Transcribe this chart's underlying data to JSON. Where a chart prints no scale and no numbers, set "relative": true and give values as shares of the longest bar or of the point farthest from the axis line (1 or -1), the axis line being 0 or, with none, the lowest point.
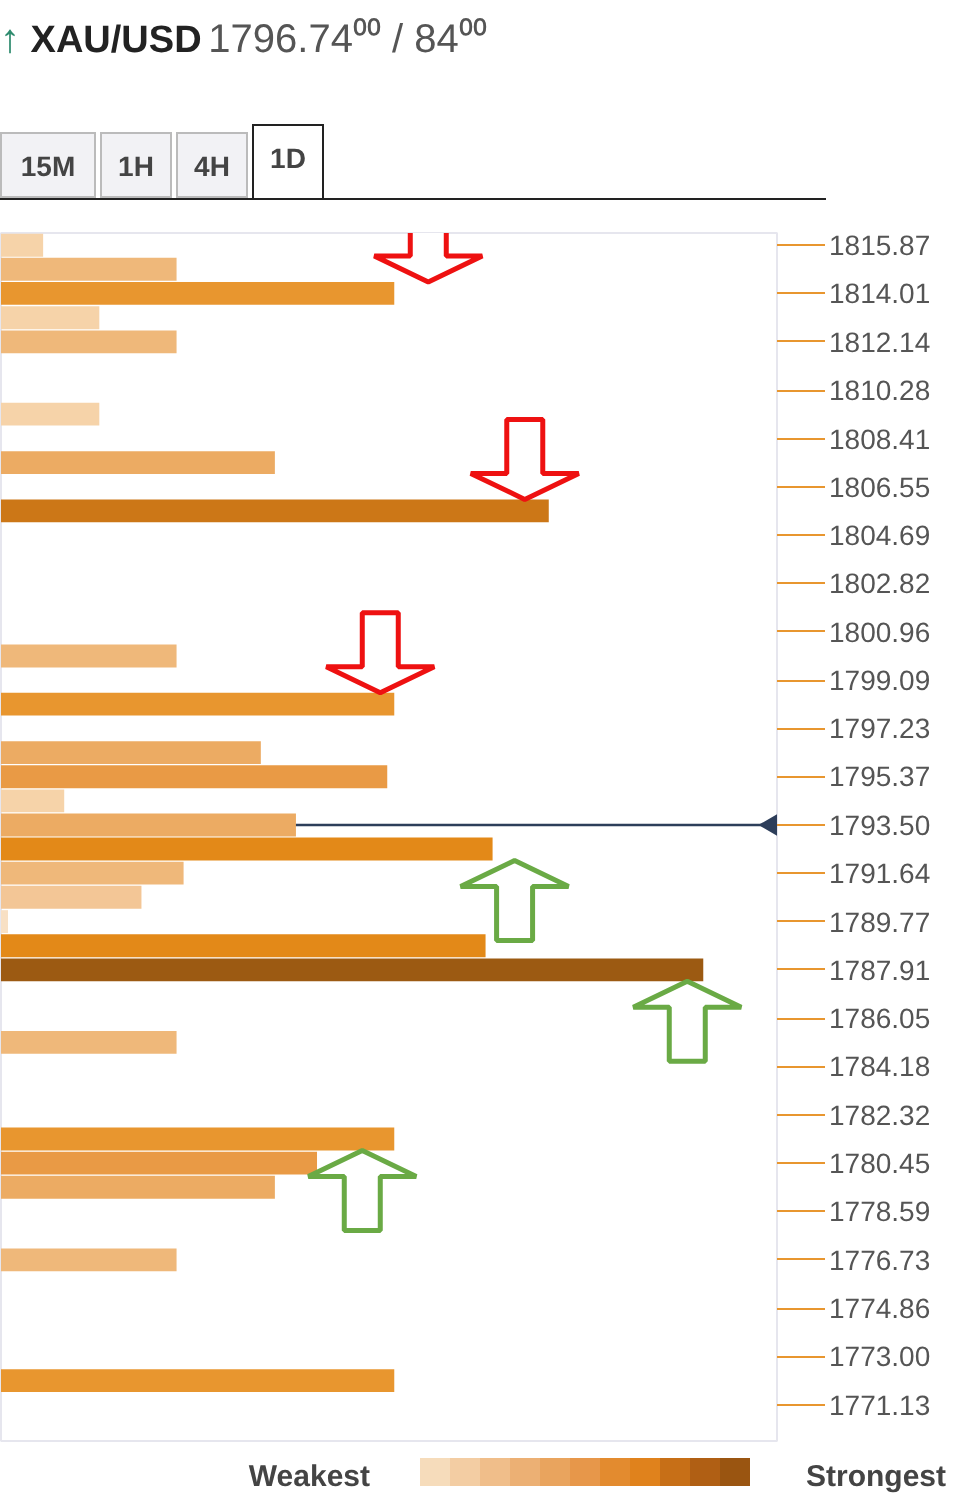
{
  "chart_data": {
    "type": "bar",
    "orientation": "horizontal",
    "relative": true,
    "title": "↑ XAU/USD",
    "subtitle": "1796.74⁰⁰ / 84⁰⁰",
    "annotations": [
      "15M",
      "1H",
      "4H",
      "1D",
      "Weakest",
      "Strongest"
    ],
    "x": [
      1815.87,
      1814.94,
      1814.01,
      1813.07,
      1812.14,
      1809.35,
      1807.48,
      1805.62,
      1800.02,
      1798.16,
      1796.29,
      1795.36,
      1794.43,
      1793.5,
      1792.57,
      1791.64,
      1790.71,
      1789.77,
      1788.84,
      1787.91,
      1785.11,
      1781.38,
      1780.45,
      1779.52,
      1776.72,
      1772.06
    ],
    "values": [
      0.06,
      0.25,
      0.56,
      0.14,
      0.25,
      0.14,
      0.39,
      0.78,
      0.25,
      0.56,
      0.37,
      0.55,
      0.09,
      0.42,
      0.7,
      0.26,
      0.2,
      0.01,
      0.69,
      1.0,
      0.25,
      0.56,
      0.45,
      0.39,
      0.25,
      0.56
    ],
    "colors": [
      "#f6d3a9",
      "#efb87a",
      "#e8962f",
      "#f6d3a9",
      "#efb87a",
      "#f6d3a9",
      "#ecab63",
      "#cc7717",
      "#efb87a",
      "#e8962f",
      "#ecab63",
      "#e99a45",
      "#f6d3a9",
      "#ecab63",
      "#e38918",
      "#efb87a",
      "#f3c696",
      "#f8e0c4",
      "#e38918",
      "#9c5a12",
      "#efb87a",
      "#e8962f",
      "#e99a45",
      "#ecab63",
      "#efb87a",
      "#e8962f"
    ],
    "ylim": [
      1769.73,
      1816.34
    ],
    "yticks": [
      1815.87,
      1814.01,
      1812.14,
      1810.28,
      1808.41,
      1806.55,
      1804.69,
      1802.82,
      1800.96,
      1799.09,
      1797.23,
      1795.37,
      {
        "value": 1793.5,
        "label": null
      },
      1791.64,
      1789.77,
      1787.91,
      1786.05,
      1784.18,
      1782.32,
      1780.45,
      1778.59,
      1776.73,
      1774.86,
      {
        "value": 1773.0,
        "label": "1773.00"
      },
      1771.13
    ],
    "ref_lines": [
      {
        "axis": "y",
        "value": 1793.5,
        "label": "1793.50",
        "color": "#2d3e5a"
      }
    ],
    "grid": false
  }
}
